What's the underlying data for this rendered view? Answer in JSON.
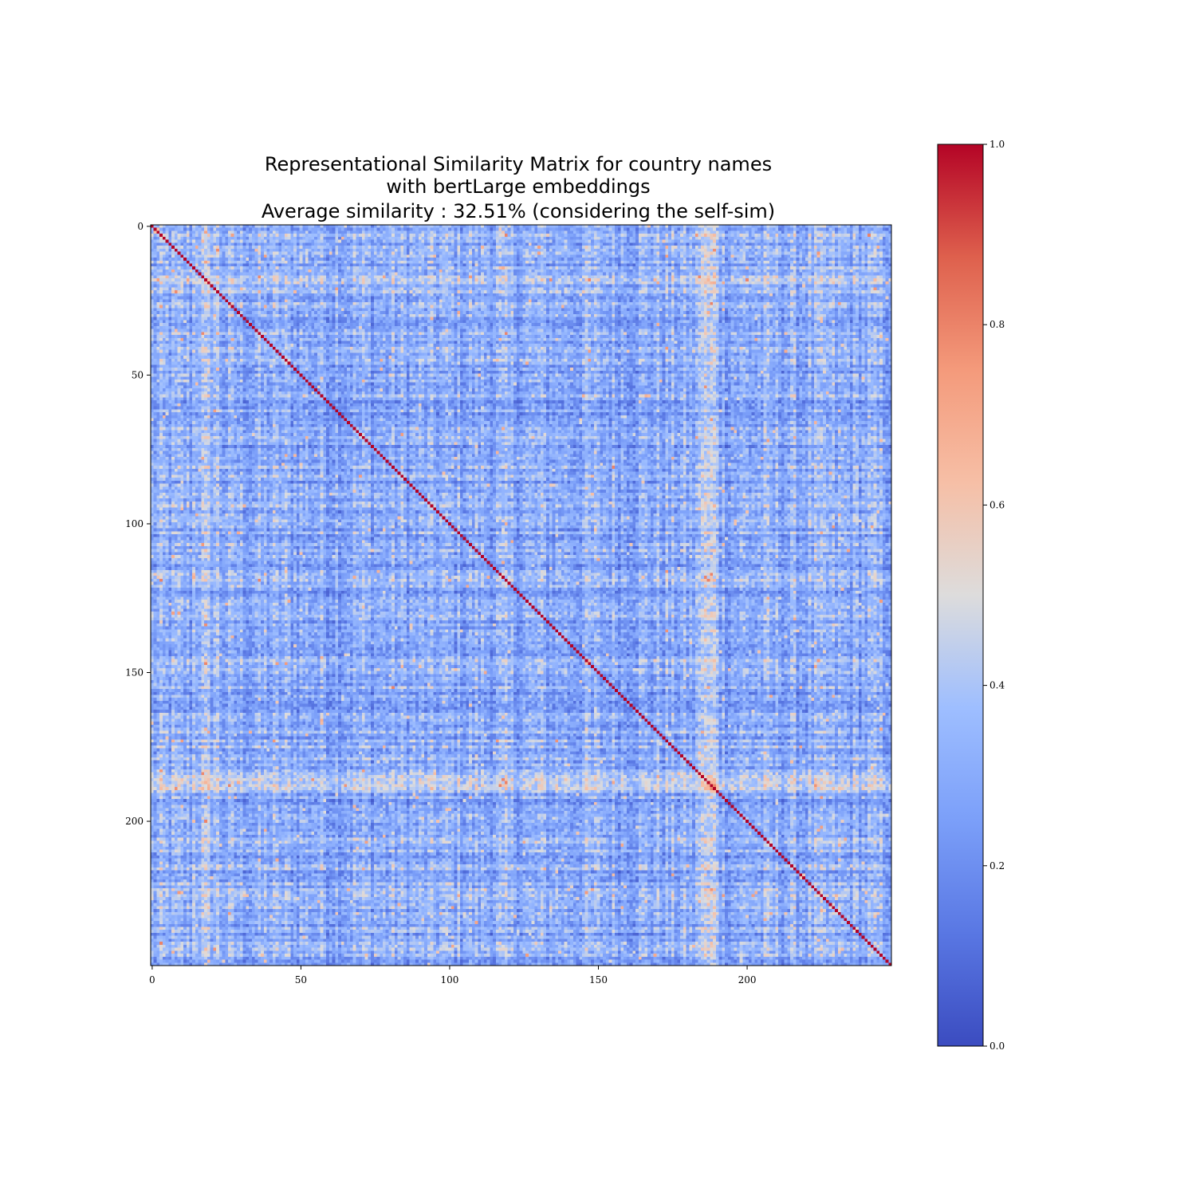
{
  "chart_data": {
    "type": "heatmap",
    "title_lines": [
      "Representational Similarity Matrix for country names",
      "with bertLarge embeddings",
      "Average similarity : 32.51% (considering the self-sim)"
    ],
    "n": 249,
    "x_ticks": [
      0,
      50,
      100,
      150,
      200
    ],
    "x_tick_labels": [
      "0",
      "50",
      "100",
      "150",
      "200"
    ],
    "y_ticks": [
      0,
      50,
      100,
      150,
      200
    ],
    "y_tick_labels": [
      "0",
      "50",
      "100",
      "150",
      "200"
    ],
    "colormap": "coolwarm",
    "vmin": 0.0,
    "vmax": 1.0,
    "colorbar_ticks": [
      0.0,
      0.2,
      0.4,
      0.6,
      0.8,
      1.0
    ],
    "colorbar_tick_labels": [
      "0.0",
      "0.2",
      "0.4",
      "0.6",
      "0.8",
      "1.0"
    ],
    "diagonal_value": 1.0,
    "average_similarity_percent": 32.51,
    "xlabel": "",
    "ylabel": "",
    "grid": false
  }
}
